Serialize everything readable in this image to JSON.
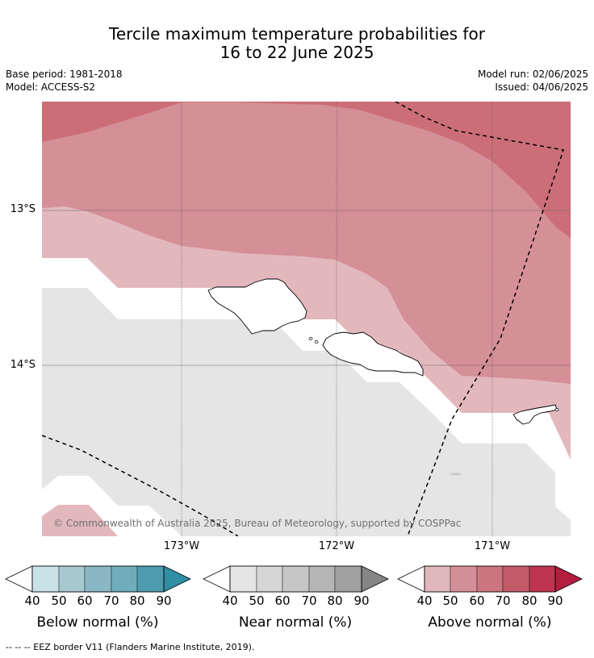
{
  "title": {
    "line1": "Tercile maximum temperature probabilities for",
    "line2": "16 to 22 June 2025"
  },
  "meta": {
    "base_period": "Base period: 1981-2018",
    "model": "Model: ACCESS-S2",
    "model_run": "Model run: 02/06/2025",
    "issued": "Issued: 04/06/2025"
  },
  "map": {
    "extent": {
      "lon_min": -173.9,
      "lon_max": -170.5,
      "lat_min": -15.1,
      "lat_max": -12.3
    },
    "lat_ticks": [
      {
        "value": -13,
        "label": "13°S"
      },
      {
        "value": -14,
        "label": "14°S"
      }
    ],
    "lon_ticks": [
      {
        "value": -173,
        "label": "173°W"
      },
      {
        "value": -172,
        "label": "172°W"
      },
      {
        "value": -171,
        "label": "171°W"
      }
    ],
    "gridlines": true,
    "copyright": "© Commonwealth of Australia 2025, Bureau of Meteorology, supported by COSPPac"
  },
  "colorbars": [
    {
      "title": "Below normal (%)",
      "ticks": [
        "40",
        "50",
        "60",
        "70",
        "80",
        "90"
      ],
      "colors": [
        "#c9e2e8",
        "#a8c8cf",
        "#8ab7c3",
        "#6fadbc",
        "#4d9bad",
        "#2f8ea3"
      ]
    },
    {
      "title": "Near normal (%)",
      "ticks": [
        "40",
        "50",
        "60",
        "70",
        "80",
        "90"
      ],
      "colors": [
        "#e5e5e5",
        "#d6d6d6",
        "#c6c6c6",
        "#b5b5b5",
        "#a0a0a0",
        "#858585"
      ]
    },
    {
      "title": "Above normal (%)",
      "ticks": [
        "40",
        "50",
        "60",
        "70",
        "80",
        "90"
      ],
      "colors": [
        "#e0b8bc",
        "#d38f97",
        "#cb767f",
        "#c25a68",
        "#bd3450",
        "#b41d3f"
      ]
    }
  ],
  "footnote": "-- -- -- EEZ border V11 (Flanders Marine Institute, 2019).",
  "colors": {
    "above_40_50": "#e2b8bc",
    "above_50_60": "#d58f97",
    "above_60_70": "#cb6e78",
    "near_40_50": "#e5e5e5",
    "no_signal": "#ffffff"
  }
}
